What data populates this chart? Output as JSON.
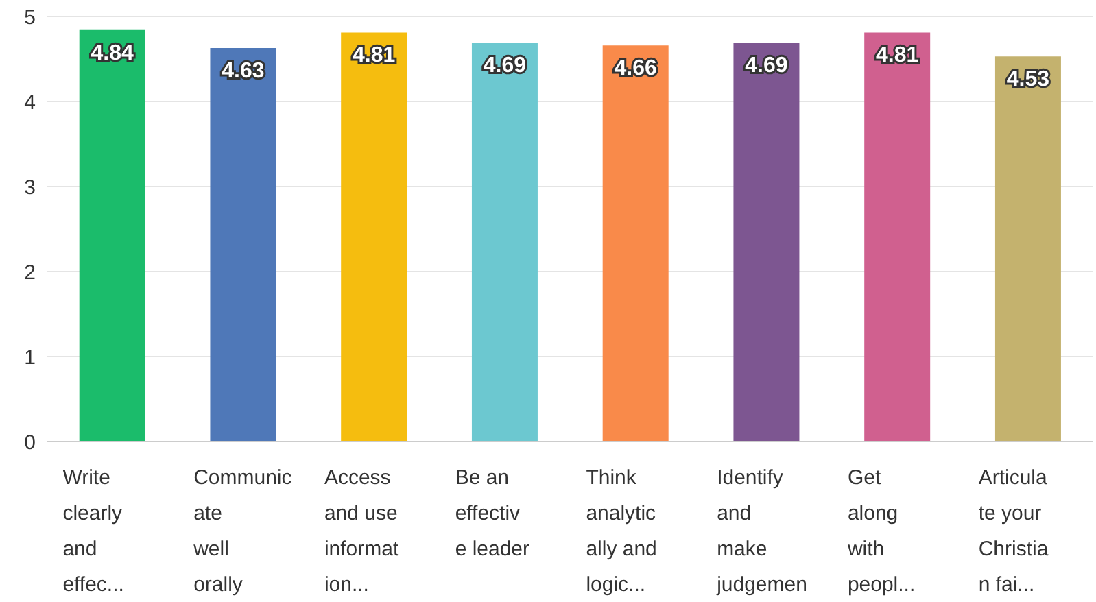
{
  "chart_data": {
    "type": "bar",
    "categories": [
      "Write\nclearly\nand\neffec...",
      "Communic\nate\nwell\norally",
      "Access\nand use\ninformat\nion...",
      "Be an\neffectiv\ne leader",
      "Think\nanalytic\nally and\nlogic...",
      "Identify\nand\nmake\njudgemen",
      "Get\nalong\nwith\npeopl...",
      "Articula\nte your\nChristia\nn fai..."
    ],
    "values": [
      4.84,
      4.63,
      4.81,
      4.69,
      4.66,
      4.69,
      4.81,
      4.53
    ],
    "colors": [
      "#1bbc6b",
      "#4f78b8",
      "#f5bd0f",
      "#6cc8d0",
      "#f98a4a",
      "#7d5691",
      "#d0608f",
      "#c4b26e"
    ],
    "ylim": [
      0,
      5
    ],
    "yticks": [
      0,
      1,
      2,
      3,
      4,
      5
    ],
    "grid": "y",
    "data_labels": true
  }
}
